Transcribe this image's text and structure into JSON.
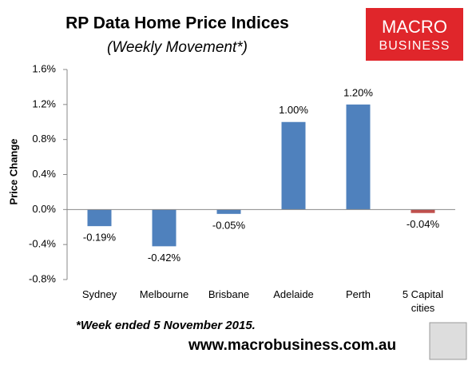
{
  "chart_data": {
    "type": "bar",
    "title": "RP Data Home Price Indices",
    "subtitle": "(Weekly Movement*)",
    "y_label": "Price Change",
    "categories": [
      "Sydney",
      "Melbourne",
      "Brisbane",
      "Adelaide",
      "Perth",
      "5 Capital cities"
    ],
    "values": [
      -0.19,
      -0.42,
      -0.05,
      1.0,
      1.2,
      -0.04
    ],
    "value_labels": [
      "-0.19%",
      "-0.42%",
      "-0.05%",
      "1.00%",
      "1.20%",
      "-0.04%"
    ],
    "colors": [
      "#4f81bd",
      "#4f81bd",
      "#4f81bd",
      "#4f81bd",
      "#4f81bd",
      "#c0504d"
    ],
    "ylim": [
      -0.8,
      1.6
    ],
    "yticks": [
      {
        "value": -0.8,
        "label": "-0.8%"
      },
      {
        "value": -0.4,
        "label": "-0.4%"
      },
      {
        "value": 0,
        "label": "0.0%"
      },
      {
        "value": 0.4,
        "label": "0.4%"
      },
      {
        "value": 0.8,
        "label": "0.8%"
      },
      {
        "value": 1.2,
        "label": "1.2%"
      },
      {
        "value": 1.6,
        "label": "1.6%"
      }
    ],
    "grid": false,
    "footnote": "*Week ended 5 November 2015.",
    "source": "www.macrobusiness.com.au"
  },
  "logo": {
    "line1": "MACRO",
    "line2": "BUSINESS"
  }
}
